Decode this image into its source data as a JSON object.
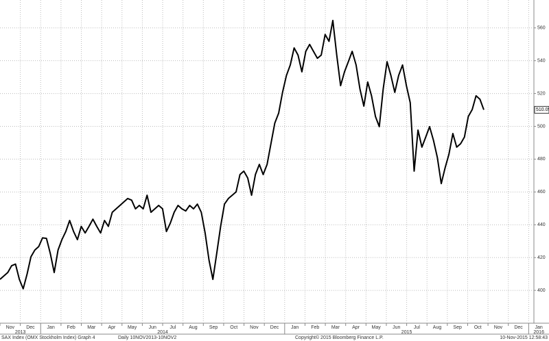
{
  "chart_data": {
    "type": "line",
    "values": [
      406.7,
      408.8,
      410.9,
      415,
      416,
      406.7,
      401,
      410,
      420.5,
      424.6,
      426.7,
      432,
      431.7,
      422.5,
      410.9,
      424.6,
      430.9,
      435.9,
      442.6,
      435.9,
      430.9,
      439,
      435,
      439,
      443.4,
      439,
      435,
      442.6,
      439,
      447.6,
      449.7,
      451.8,
      453.9,
      456,
      455,
      449.7,
      451.8,
      449.7,
      458,
      447.6,
      449.7,
      451.8,
      449.7,
      435.9,
      441,
      447.6,
      451.8,
      449.7,
      448.4,
      451.8,
      449.7,
      452.6,
      447.6,
      435,
      418.4,
      406.7,
      422.5,
      439,
      452.6,
      456,
      458,
      460,
      470.6,
      472.7,
      468.5,
      458,
      470.6,
      476.8,
      470.6,
      476.8,
      489.4,
      501.9,
      508.1,
      520.7,
      531,
      537.4,
      547.8,
      543.4,
      533.2,
      545.7,
      549.9,
      545.7,
      541.5,
      543.4,
      556,
      551.8,
      564.5,
      543.4,
      524.8,
      533.2,
      539.4,
      545.7,
      537.4,
      522.8,
      512.3,
      527,
      518.6,
      506,
      499.8,
      522.8,
      539.4,
      531,
      520.7,
      531,
      537.4,
      524.8,
      514.4,
      472.7,
      497.7,
      487.3,
      493.5,
      499.8,
      491.4,
      481,
      465.1,
      474.7,
      483,
      495.6,
      487.3,
      489.4,
      493.5,
      506,
      510.2,
      518.6,
      516.5,
      510.09
    ],
    "last_value_label": "510.09",
    "color": "#000000",
    "months": [
      "Nov",
      "Dec",
      "Jan",
      "Feb",
      "Mar",
      "Apr",
      "May",
      "Jun",
      "Jul",
      "Aug",
      "Sep",
      "Oct",
      "Nov",
      "Dec",
      "Jan",
      "Feb",
      "Mar",
      "Apr",
      "May",
      "Jun",
      "Jul",
      "Aug",
      "Sep",
      "Oct",
      "Nov",
      "Dec",
      "Jan"
    ],
    "years": [
      "2013",
      "2014",
      "2015",
      "2016"
    ],
    "ylim": [
      380,
      577
    ],
    "yticks": [
      400,
      420,
      440,
      460,
      480,
      500,
      520,
      540,
      560
    ],
    "grid": true,
    "footer": {
      "left": "SAX Index (OMX Stockholm Index) Graph 4",
      "range": "Daily 10NOV2013-10NOV2",
      "copyright": "Copyright© 2015 Bloomberg Finance L.P.",
      "timestamp": "10-Nov-2015 12:58:43"
    }
  }
}
